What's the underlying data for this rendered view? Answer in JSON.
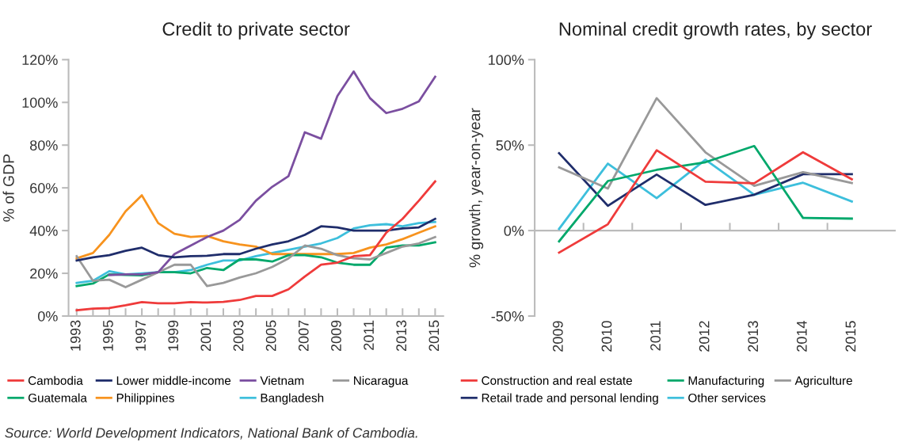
{
  "chart_data": [
    {
      "type": "line",
      "title": "Credit to private sector",
      "ylabel": "% of GDP",
      "legend": "bottom",
      "grid": false,
      "x": [
        1993,
        1994,
        1995,
        1996,
        1997,
        1998,
        1999,
        2000,
        2001,
        2002,
        2003,
        2004,
        2005,
        2006,
        2007,
        2008,
        2009,
        2010,
        2011,
        2012,
        2013,
        2014,
        2015
      ],
      "xlim": [
        1992.5,
        2015.5
      ],
      "xticks": [
        1993,
        {
          "value": 1994,
          "label": null
        },
        1995,
        {
          "value": 1996,
          "label": null
        },
        1997,
        {
          "value": 1998,
          "label": null
        },
        1999,
        {
          "value": 2000,
          "label": null
        },
        2001,
        {
          "value": 2002,
          "label": null
        },
        2003,
        {
          "value": 2004,
          "label": null
        },
        2005,
        {
          "value": 2006,
          "label": null
        },
        2007,
        {
          "value": 2008,
          "label": null
        },
        2009,
        {
          "value": 2010,
          "label": null
        },
        2011,
        {
          "value": 2012,
          "label": null
        },
        2013,
        {
          "value": 2014,
          "label": null
        },
        2015
      ],
      "ylim": [
        0,
        120
      ],
      "yticks": [
        {
          "value": 0,
          "label": "0%"
        },
        {
          "value": 20,
          "label": "20%"
        },
        {
          "value": 40,
          "label": "40%"
        },
        {
          "value": 60,
          "label": "60%"
        },
        {
          "value": 80,
          "label": "80%"
        },
        {
          "value": 100,
          "label": "100%"
        },
        {
          "value": 120,
          "label": "120%"
        }
      ],
      "series": [
        {
          "name": "Cambodia",
          "color": "#ef3b3b",
          "values": [
            2.7,
            3.5,
            3.7,
            5,
            6.5,
            6,
            6,
            6.5,
            6.3,
            6.6,
            7.5,
            9.4,
            9.4,
            12.5,
            18.5,
            24,
            25,
            28,
            28.5,
            39,
            45.5,
            54,
            63
          ]
        },
        {
          "name": "Lower middle-income",
          "color": "#1f2d6b",
          "values": [
            26,
            27.5,
            28.5,
            30.5,
            32,
            28.5,
            27.5,
            28,
            28.2,
            29,
            29,
            31.5,
            33.5,
            35,
            38,
            42,
            41.5,
            40,
            40,
            40,
            41,
            41.5,
            45.5
          ]
        },
        {
          "name": "Vietnam",
          "color": "#7b4fa0",
          "values": [
            null,
            null,
            19.2,
            19.5,
            19.5,
            20.5,
            29,
            33,
            37,
            40,
            45,
            54,
            60.5,
            65.5,
            86,
            83,
            103,
            114.5,
            102,
            95,
            97,
            100.5,
            112
          ]
        },
        {
          "name": "Nicaragua",
          "color": "#999999",
          "values": [
            28,
            16.5,
            17,
            13.5,
            17,
            20.5,
            24,
            24,
            14,
            15.5,
            18,
            20,
            23,
            27,
            33,
            31.5,
            28.5,
            27,
            26.5,
            29.5,
            32.5,
            34,
            37
          ]
        },
        {
          "name": "Guatemala",
          "color": "#00a86b",
          "values": [
            14,
            15.2,
            19.5,
            19.2,
            19,
            20.5,
            20.5,
            20,
            22.5,
            21.5,
            26.5,
            26.5,
            25.5,
            28.5,
            28.5,
            27.5,
            25,
            24,
            24,
            32,
            33,
            33,
            34.5
          ]
        },
        {
          "name": "Philippines",
          "color": "#f7931e",
          "values": [
            27,
            29.5,
            38,
            49,
            56.5,
            43.5,
            38.5,
            37,
            37.5,
            35,
            33.5,
            32.5,
            29,
            29,
            29,
            29,
            29,
            29.5,
            32,
            33.5,
            36,
            39,
            42
          ]
        },
        {
          "name": "Bangladesh",
          "color": "#3dbfdc",
          "values": [
            15.5,
            16.5,
            21,
            19.5,
            20,
            20.5,
            20.5,
            21.5,
            24,
            26,
            26,
            28,
            29.5,
            31,
            32.5,
            34,
            36.5,
            41,
            42.5,
            43,
            42,
            43.5,
            44
          ]
        }
      ],
      "annotations": [
        "Source: World Development Indicators, National Bank of Cambodia."
      ]
    },
    {
      "type": "line",
      "title": "Nominal credit growth rates, by sector",
      "ylabel": "% growth, year-on-year",
      "legend": "bottom",
      "grid": false,
      "categories": [
        "2009",
        "2010",
        "2011",
        "2012",
        "2013",
        "2014",
        "2015"
      ],
      "ylim": [
        -50,
        100
      ],
      "yticks": [
        {
          "value": -50,
          "label": "-50%"
        },
        {
          "value": 0,
          "label": "0%"
        },
        {
          "value": 50,
          "label": "50%"
        },
        {
          "value": 100,
          "label": "100%"
        }
      ],
      "ref_lines": [
        {
          "axis": "y",
          "value": 0,
          "color": "#bbbbbb"
        }
      ],
      "series": [
        {
          "name": "Construction and real estate",
          "color": "#ef3b3b",
          "values": [
            -12.9,
            3.7,
            47,
            28.6,
            27.7,
            45.8,
            30
          ]
        },
        {
          "name": "Manufacturing",
          "color": "#00a86b",
          "values": [
            -6.3,
            29,
            35.5,
            40,
            49.5,
            7.4,
            7
          ]
        },
        {
          "name": "Agriculture",
          "color": "#999999",
          "values": [
            37,
            24.6,
            77.5,
            45.8,
            26.2,
            34.2,
            27.8
          ]
        },
        {
          "name": "Retail trade and personal lending",
          "color": "#1f2d6b",
          "values": [
            45.3,
            14.5,
            32.8,
            15,
            21,
            33,
            33
          ]
        },
        {
          "name": "Other services",
          "color": "#3dbfdc",
          "values": [
            1,
            39.2,
            19,
            41.5,
            21,
            28,
            17
          ]
        }
      ]
    }
  ]
}
